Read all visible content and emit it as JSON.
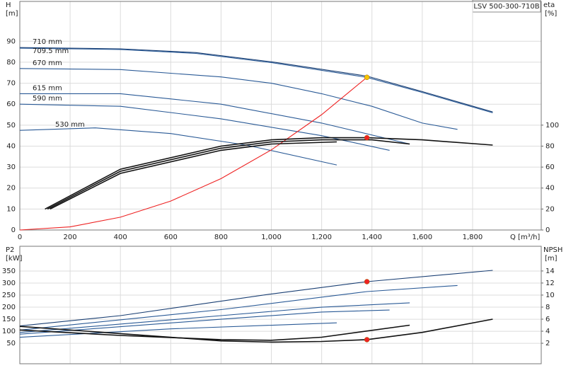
{
  "chart_data": [
    {
      "type": "line",
      "title": "LSV 500-300-710B",
      "ylabel": "H",
      "yunit": "[m]",
      "y2label": "eta",
      "y2unit": "[%]",
      "xlabel": "Q [m³/h]",
      "xlim": [
        0,
        2073
      ],
      "xticks": [
        0,
        200,
        400,
        600,
        800,
        {
          "value": 1000,
          "label": "1,000"
        },
        {
          "value": 1200,
          "label": "1,200"
        },
        {
          "value": 1400,
          "label": "1,400"
        },
        {
          "value": 1600,
          "label": "1,600"
        },
        {
          "value": 1800,
          "label": "1,800"
        }
      ],
      "show_xtick_labels": true,
      "ylim": [
        0,
        109
      ],
      "yticks": [
        0,
        10,
        20,
        30,
        40,
        50,
        60,
        70,
        80,
        90
      ],
      "y2lim": [
        0,
        218
      ],
      "y2ticks": [
        0,
        20,
        40,
        60,
        80,
        100
      ],
      "grid": true,
      "series": [
        {
          "name": "710 mm",
          "color": "#1a3f73",
          "mark": "line",
          "x": [
            0,
            400,
            700,
            1000,
            1380,
            1600,
            1880
          ],
          "values": [
            87,
            86.4,
            84.6,
            80.2,
            73.4,
            66,
            56.3
          ]
        },
        {
          "name": "709.5 mm",
          "color": "#2a5a96",
          "mark": "line",
          "x": [
            0,
            400,
            700,
            1000,
            1380,
            1600,
            1880
          ],
          "values": [
            86.7,
            86.1,
            84.2,
            79.8,
            72.8,
            65.6,
            55.9
          ]
        },
        {
          "name": "670 mm",
          "color": "#2a5a96",
          "mark": "line",
          "x": [
            0,
            400,
            800,
            1000,
            1200,
            1400,
            1600,
            1740
          ],
          "values": [
            77,
            76.5,
            73,
            70,
            65,
            59,
            51,
            48
          ]
        },
        {
          "name": "615 mm",
          "color": "#2a5a96",
          "mark": "line",
          "x": [
            0,
            400,
            800,
            1200,
            1550
          ],
          "values": [
            65,
            65,
            60,
            51,
            41
          ]
        },
        {
          "name": "590 mm",
          "color": "#2a5a96",
          "mark": "line",
          "x": [
            0,
            400,
            800,
            1200,
            1470
          ],
          "values": [
            60,
            59,
            53,
            45,
            38
          ]
        },
        {
          "name": "530 mm",
          "color": "#2a5a96",
          "mark": "line",
          "x": [
            0,
            300,
            600,
            900,
            1260
          ],
          "values": [
            47.5,
            48.7,
            46,
            40.5,
            31
          ]
        },
        {
          "color": "#ee2222",
          "mark": "line",
          "x": [
            0,
            200,
            400,
            600,
            800,
            1000,
            1200,
            1380
          ],
          "values": [
            0,
            1.5,
            6.1,
            13.8,
            24.5,
            38.2,
            55,
            72.8
          ]
        },
        {
          "color": "#111111",
          "mark": "line",
          "axis": "y2",
          "x": [
            100,
            400,
            800,
            1000,
            1200,
            1380,
            1600,
            1880
          ],
          "values": [
            20,
            58,
            80,
            86,
            88,
            88,
            86,
            81
          ]
        },
        {
          "color": "#111111",
          "mark": "line",
          "axis": "y2",
          "x": [
            110,
            400,
            800,
            1000,
            1200,
            1400,
            1550
          ],
          "values": [
            20,
            56,
            78,
            84,
            86,
            86,
            82
          ]
        },
        {
          "color": "#111111",
          "mark": "line",
          "axis": "y2",
          "x": [
            120,
            400,
            800,
            1000,
            1260
          ],
          "values": [
            20,
            54,
            76,
            82,
            84
          ]
        },
        {
          "color": "#f5c400",
          "mark": "dot",
          "x": [
            1380
          ],
          "values": [
            72.8
          ]
        },
        {
          "color": "#ee2222",
          "mark": "dot",
          "axis": "y2",
          "x": [
            1380
          ],
          "values": [
            88
          ]
        }
      ]
    },
    {
      "type": "line",
      "ylabel": "P2",
      "yunit": "[kW]",
      "y2label": "NPSH",
      "y2unit": "[m]",
      "xlim": [
        0,
        2073
      ],
      "xticks": [
        0,
        200,
        400,
        600,
        800,
        1000,
        1200,
        1400,
        1600,
        1800
      ],
      "show_xtick_labels": false,
      "ylim": [
        -35,
        453
      ],
      "yticks": [
        50,
        100,
        150,
        200,
        250,
        300,
        350
      ],
      "y2lim": [
        -1.4,
        18.1
      ],
      "y2ticks": [
        2,
        4,
        6,
        8,
        10,
        12,
        14
      ],
      "grid": true,
      "series": [
        {
          "color": "#1a3f73",
          "mark": "line",
          "x": [
            0,
            400,
            800,
            1000,
            1380,
            1880
          ],
          "values": [
            122,
            165,
            225,
            255,
            306,
            353
          ]
        },
        {
          "color": "#2a5a96",
          "mark": "line",
          "x": [
            0,
            800,
            1380,
            1740
          ],
          "values": [
            105,
            190,
            265,
            290
          ]
        },
        {
          "color": "#2a5a96",
          "mark": "line",
          "x": [
            0,
            800,
            1200,
            1550
          ],
          "values": [
            95,
            165,
            200,
            218
          ]
        },
        {
          "color": "#2a5a96",
          "mark": "line",
          "x": [
            0,
            800,
            1200,
            1470
          ],
          "values": [
            88,
            150,
            180,
            188
          ]
        },
        {
          "color": "#2a5a96",
          "mark": "line",
          "x": [
            0,
            600,
            1260
          ],
          "values": [
            75,
            110,
            135
          ]
        },
        {
          "color": "#111111",
          "mark": "line",
          "axis": "y2",
          "x": [
            0,
            400,
            800,
            1000,
            1200,
            1380,
            1600,
            1880
          ],
          "values": [
            4.8,
            3.6,
            2.4,
            2.2,
            2.3,
            2.6,
            3.8,
            6
          ]
        },
        {
          "color": "#111111",
          "mark": "line",
          "axis": "y2",
          "x": [
            0,
            400,
            800,
            1000,
            1200,
            1550
          ],
          "values": [
            4.2,
            3.3,
            2.6,
            2.5,
            3,
            5
          ]
        },
        {
          "color": "#ee2222",
          "mark": "dot",
          "x": [
            1380
          ],
          "values": [
            306
          ]
        },
        {
          "color": "#ee2222",
          "mark": "dot",
          "axis": "y2",
          "x": [
            1380
          ],
          "values": [
            2.6
          ]
        }
      ]
    }
  ]
}
